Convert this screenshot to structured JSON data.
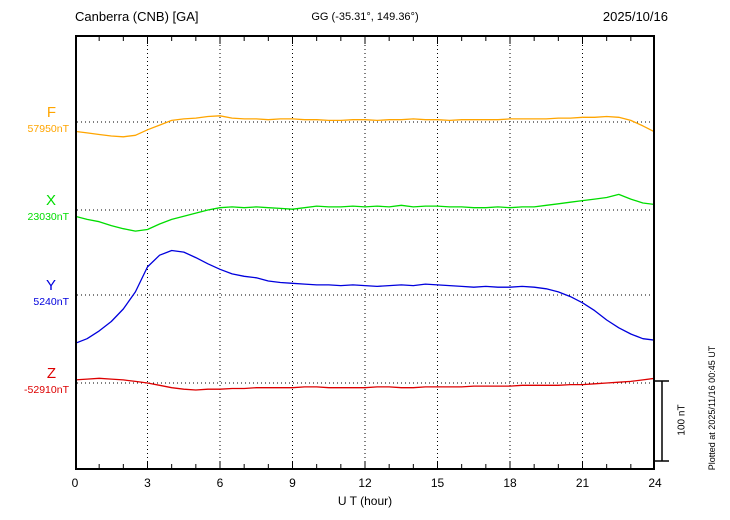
{
  "header": {
    "title": "Canberra (CNB)  [GA]",
    "coordinates": "GG (-35.31°, 149.36°)",
    "date": "2025/10/16"
  },
  "chart_data": {
    "type": "line",
    "title": "Canberra (CNB)  [GA]",
    "station": "Canberra",
    "station_code": "CNB",
    "agency": "GA",
    "coordinates": "GG (-35.31°, 149.36°)",
    "date": "2025/10/16",
    "xlabel": "U T (hour)",
    "xlim": [
      0,
      24
    ],
    "x_tick_labels": [
      "0",
      "3",
      "6",
      "9",
      "12",
      "15",
      "18",
      "21",
      "24"
    ],
    "grid": "dotted",
    "scale_bar": {
      "label": "100 nT",
      "nT": 100
    },
    "plotted_at": "Plotted at 2025/11/16 00:45 UT",
    "series": [
      {
        "name": "F",
        "color": "#ffa500",
        "baseline_label": "57950nT",
        "baseline_nT": 57950,
        "unit": "nT",
        "points_hour_offsetnT": [
          [
            0,
            -12
          ],
          [
            0.5,
            -14
          ],
          [
            1,
            -16
          ],
          [
            1.5,
            -18
          ],
          [
            2,
            -19
          ],
          [
            2.5,
            -17
          ],
          [
            3,
            -10
          ],
          [
            3.5,
            -4
          ],
          [
            4,
            2
          ],
          [
            4.5,
            4
          ],
          [
            5,
            5
          ],
          [
            5.5,
            7
          ],
          [
            6,
            8
          ],
          [
            6.5,
            5
          ],
          [
            7,
            4
          ],
          [
            7.5,
            4
          ],
          [
            8,
            3
          ],
          [
            8.5,
            4
          ],
          [
            9,
            4
          ],
          [
            9.5,
            3
          ],
          [
            10,
            3
          ],
          [
            10.5,
            2
          ],
          [
            11,
            2
          ],
          [
            11.5,
            3
          ],
          [
            12,
            3
          ],
          [
            12.5,
            2
          ],
          [
            13,
            3
          ],
          [
            13.5,
            3
          ],
          [
            14,
            4
          ],
          [
            14.5,
            3
          ],
          [
            15,
            3
          ],
          [
            15.5,
            2
          ],
          [
            16,
            3
          ],
          [
            16.5,
            3
          ],
          [
            17,
            3
          ],
          [
            17.5,
            3
          ],
          [
            18,
            4
          ],
          [
            18.5,
            4
          ],
          [
            19,
            4
          ],
          [
            19.5,
            4
          ],
          [
            20,
            5
          ],
          [
            20.5,
            5
          ],
          [
            21,
            6
          ],
          [
            21.5,
            6
          ],
          [
            22,
            7
          ],
          [
            22.5,
            6
          ],
          [
            23,
            2
          ],
          [
            23.5,
            -5
          ],
          [
            24,
            -13
          ]
        ]
      },
      {
        "name": "X",
        "color": "#00dd00",
        "baseline_label": "23030nT",
        "baseline_nT": 23030,
        "unit": "nT",
        "points_hour_offsetnT": [
          [
            0,
            -8
          ],
          [
            0.5,
            -12
          ],
          [
            1,
            -15
          ],
          [
            1.5,
            -20
          ],
          [
            2,
            -24
          ],
          [
            2.5,
            -27
          ],
          [
            3,
            -25
          ],
          [
            3.5,
            -18
          ],
          [
            4,
            -12
          ],
          [
            4.5,
            -8
          ],
          [
            5,
            -4
          ],
          [
            5.5,
            0
          ],
          [
            6,
            3
          ],
          [
            6.5,
            4
          ],
          [
            7,
            3
          ],
          [
            7.5,
            4
          ],
          [
            8,
            3
          ],
          [
            8.5,
            2
          ],
          [
            9,
            1
          ],
          [
            9.5,
            3
          ],
          [
            10,
            5
          ],
          [
            10.5,
            4
          ],
          [
            11,
            4
          ],
          [
            11.5,
            5
          ],
          [
            12,
            4
          ],
          [
            12.5,
            5
          ],
          [
            13,
            4
          ],
          [
            13.5,
            6
          ],
          [
            14,
            4
          ],
          [
            14.5,
            5
          ],
          [
            15,
            5
          ],
          [
            15.5,
            4
          ],
          [
            16,
            4
          ],
          [
            16.5,
            3
          ],
          [
            17,
            3
          ],
          [
            17.5,
            4
          ],
          [
            18,
            3
          ],
          [
            18.5,
            4
          ],
          [
            19,
            4
          ],
          [
            19.5,
            6
          ],
          [
            20,
            8
          ],
          [
            20.5,
            10
          ],
          [
            21,
            12
          ],
          [
            21.5,
            14
          ],
          [
            22,
            16
          ],
          [
            22.5,
            20
          ],
          [
            23,
            14
          ],
          [
            23.5,
            9
          ],
          [
            24,
            7
          ]
        ]
      },
      {
        "name": "Y",
        "color": "#0000dd",
        "baseline_label": "5240nT",
        "baseline_nT": 5240,
        "unit": "nT",
        "points_hour_offsetnT": [
          [
            0,
            -62
          ],
          [
            0.5,
            -56
          ],
          [
            1,
            -46
          ],
          [
            1.5,
            -34
          ],
          [
            2,
            -18
          ],
          [
            2.5,
            4
          ],
          [
            3,
            36
          ],
          [
            3.5,
            51
          ],
          [
            4,
            57
          ],
          [
            4.5,
            55
          ],
          [
            5,
            48
          ],
          [
            5.5,
            40
          ],
          [
            6,
            33
          ],
          [
            6.5,
            27
          ],
          [
            7,
            24
          ],
          [
            7.5,
            22
          ],
          [
            8,
            18
          ],
          [
            8.5,
            16
          ],
          [
            9,
            15
          ],
          [
            9.5,
            14
          ],
          [
            10,
            13
          ],
          [
            10.5,
            13
          ],
          [
            11,
            12
          ],
          [
            11.5,
            13
          ],
          [
            12,
            12
          ],
          [
            12.5,
            11
          ],
          [
            13,
            12
          ],
          [
            13.5,
            13
          ],
          [
            14,
            12
          ],
          [
            14.5,
            14
          ],
          [
            15,
            13
          ],
          [
            15.5,
            12
          ],
          [
            16,
            11
          ],
          [
            16.5,
            10
          ],
          [
            17,
            11
          ],
          [
            17.5,
            10
          ],
          [
            18,
            10
          ],
          [
            18.5,
            11
          ],
          [
            19,
            10
          ],
          [
            19.5,
            8
          ],
          [
            20,
            4
          ],
          [
            20.5,
            -2
          ],
          [
            21,
            -10
          ],
          [
            21.5,
            -20
          ],
          [
            22,
            -32
          ],
          [
            22.5,
            -42
          ],
          [
            23,
            -50
          ],
          [
            23.5,
            -56
          ],
          [
            24,
            -58
          ]
        ]
      },
      {
        "name": "Z",
        "color": "#dd0000",
        "baseline_label": "-52910nT",
        "baseline_nT": -52910,
        "unit": "nT",
        "points_hour_offsetnT": [
          [
            0,
            4
          ],
          [
            0.5,
            5
          ],
          [
            1,
            6
          ],
          [
            1.5,
            5
          ],
          [
            2,
            4
          ],
          [
            2.5,
            2
          ],
          [
            3,
            0
          ],
          [
            3.5,
            -3
          ],
          [
            4,
            -6
          ],
          [
            4.5,
            -8
          ],
          [
            5,
            -9
          ],
          [
            5.5,
            -8
          ],
          [
            6,
            -8
          ],
          [
            6.5,
            -7
          ],
          [
            7,
            -7
          ],
          [
            7.5,
            -6
          ],
          [
            8,
            -6
          ],
          [
            8.5,
            -6
          ],
          [
            9,
            -6
          ],
          [
            9.5,
            -5
          ],
          [
            10,
            -5
          ],
          [
            10.5,
            -6
          ],
          [
            11,
            -6
          ],
          [
            11.5,
            -6
          ],
          [
            12,
            -6
          ],
          [
            12.5,
            -5
          ],
          [
            13,
            -5
          ],
          [
            13.5,
            -6
          ],
          [
            14,
            -6
          ],
          [
            14.5,
            -5
          ],
          [
            15,
            -5
          ],
          [
            15.5,
            -5
          ],
          [
            16,
            -5
          ],
          [
            16.5,
            -4
          ],
          [
            17,
            -4
          ],
          [
            17.5,
            -4
          ],
          [
            18,
            -4
          ],
          [
            18.5,
            -3
          ],
          [
            19,
            -3
          ],
          [
            19.5,
            -3
          ],
          [
            20,
            -3
          ],
          [
            20.5,
            -2
          ],
          [
            21,
            -2
          ],
          [
            21.5,
            -1
          ],
          [
            22,
            0
          ],
          [
            22.5,
            1
          ],
          [
            23,
            2
          ],
          [
            23.5,
            4
          ],
          [
            24,
            6
          ]
        ]
      }
    ]
  }
}
